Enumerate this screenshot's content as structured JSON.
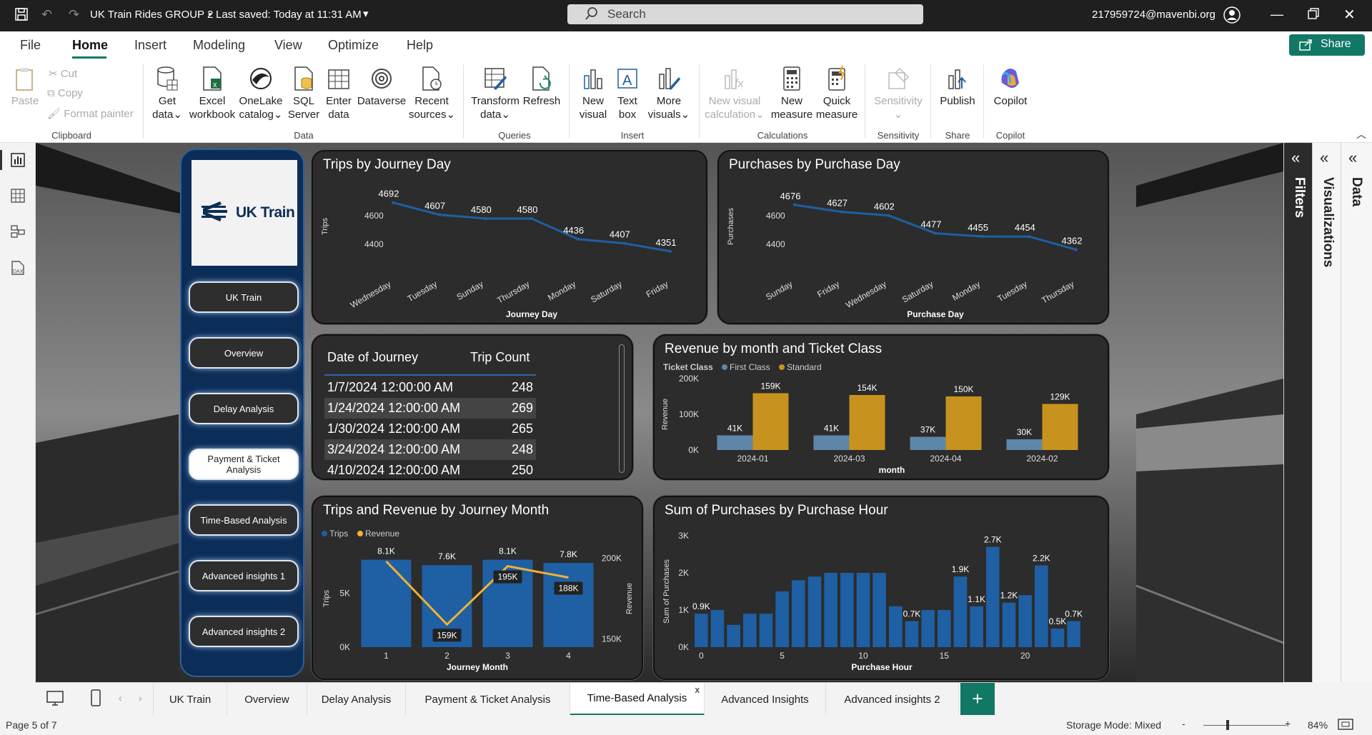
{
  "titlebar": {
    "file_title": "UK Train Rides GROUP 2",
    "saved": "Last saved: Today at 11:31 AM",
    "search_placeholder": "Search",
    "user": "217959724@mavenbi.org"
  },
  "menu": {
    "items": [
      "File",
      "Home",
      "Insert",
      "Modeling",
      "View",
      "Optimize",
      "Help"
    ],
    "share": "Share"
  },
  "ribbon": {
    "clipboard": {
      "paste": "Paste",
      "cut": "Cut",
      "copy": "Copy",
      "format_painter": "Format painter",
      "group": "Clipboard"
    },
    "data": {
      "get_data": "Get data",
      "excel": "Excel workbook",
      "onelake": "OneLake catalog",
      "sql": "SQL Server",
      "enter": "Enter data",
      "dataverse": "Dataverse",
      "recent": "Recent sources",
      "group": "Data"
    },
    "queries": {
      "transform": "Transform data",
      "refresh": "Refresh",
      "group": "Queries"
    },
    "insert": {
      "new_visual": "New visual",
      "text_box": "Text box",
      "more_visuals": "More visuals",
      "group": "Insert"
    },
    "calculations": {
      "new_visual_calc": "New visual calculation",
      "new_measure": "New measure",
      "quick_measure": "Quick measure",
      "group": "Calculations"
    },
    "sensitivity": {
      "label": "Sensitivity",
      "group": "Sensitivity"
    },
    "share": {
      "publish": "Publish",
      "group": "Share"
    },
    "copilot": {
      "label": "Copilot",
      "group": "Copilot"
    }
  },
  "nav": {
    "logo_text": "UK Train",
    "buttons": [
      "UK Train",
      "Overview",
      "Delay Analysis",
      "Payment & Ticket Analysis",
      "Time-Based Analysis",
      "Advanced insights 1",
      "Advanced insights 2"
    ]
  },
  "panes": {
    "filters": "Filters",
    "visualizations": "Visualizations",
    "data": "Data"
  },
  "tabs": [
    "UK Train",
    "Overview",
    "Delay Analysis",
    "Payment & Ticket Analysis",
    "Time-Based Analysis",
    "Advanced Insights",
    "Advanced insights 2"
  ],
  "status": {
    "page": "Page 5 of 7",
    "storage": "Storage Mode: Mixed",
    "zoom": "84%"
  },
  "colors": {
    "blue": "#1f5fa3",
    "gold": "#c8921e",
    "steel": "#5e86a8",
    "orange_line": "#f2b134"
  },
  "chart_data": [
    {
      "id": "trips_by_journey_day",
      "type": "line",
      "title": "Trips by Journey Day",
      "xlabel": "Journey Day",
      "ylabel": "Trips",
      "categories": [
        "Wednesday",
        "Tuesday",
        "Sunday",
        "Thursday",
        "Monday",
        "Saturday",
        "Friday"
      ],
      "values": [
        4692,
        4607,
        4580,
        4580,
        4436,
        4407,
        4351
      ],
      "labels": [
        "4692",
        "4607",
        "4580",
        "4580",
        "4436",
        "4407",
        "4351"
      ],
      "yticks": [
        "4600",
        "4400"
      ],
      "ylim": [
        4300,
        4750
      ]
    },
    {
      "id": "purchases_by_purchase_day",
      "type": "line",
      "title": "Purchases by Purchase Day",
      "xlabel": "Purchase Day",
      "ylabel": "Purchases",
      "categories": [
        "Sunday",
        "Friday",
        "Wednesday",
        "Saturday",
        "Monday",
        "Tuesday",
        "Thursday"
      ],
      "values": [
        4676,
        4627,
        4602,
        4477,
        4455,
        4454,
        4362
      ],
      "labels": [
        "4676",
        "4627",
        "4602",
        "4477",
        "4455",
        "4454",
        "4362"
      ],
      "yticks": [
        "4600",
        "4400"
      ],
      "ylim": [
        4300,
        4750
      ]
    },
    {
      "id": "date_table",
      "type": "table",
      "columns": [
        "Date of Journey",
        "Trip Count"
      ],
      "rows": [
        [
          "1/7/2024 12:00:00 AM",
          "248"
        ],
        [
          "1/24/2024 12:00:00 AM",
          "269"
        ],
        [
          "1/30/2024 12:00:00 AM",
          "265"
        ],
        [
          "3/24/2024 12:00:00 AM",
          "248"
        ],
        [
          "4/10/2024 12:00:00 AM",
          "250"
        ]
      ]
    },
    {
      "id": "revenue_by_month_class",
      "type": "bar",
      "title": "Revenue by month and Ticket Class",
      "legend_title": "Ticket Class",
      "xlabel": "month",
      "ylabel": "Revenue",
      "categories": [
        "2024-01",
        "2024-03",
        "2024-04",
        "2024-02"
      ],
      "series": [
        {
          "name": "First Class",
          "values": [
            41,
            41,
            37,
            30
          ],
          "labels": [
            "41K",
            "41K",
            "37K",
            "30K"
          ]
        },
        {
          "name": "Standard",
          "values": [
            159,
            154,
            150,
            129
          ],
          "labels": [
            "159K",
            "154K",
            "150K",
            "129K"
          ]
        }
      ],
      "yticks": [
        "200K",
        "100K",
        "0K"
      ],
      "ylim": [
        0,
        200
      ]
    },
    {
      "id": "trips_revenue_by_month",
      "type": "bar",
      "title": "Trips and Revenue by Journey Month",
      "xlabel": "Journey Month",
      "ylabel": "Trips",
      "y2label": "Revenue",
      "categories": [
        "1",
        "2",
        "3",
        "4"
      ],
      "series": [
        {
          "name": "Trips",
          "values": [
            8100,
            7600,
            8100,
            7800
          ],
          "labels": [
            "8.1K",
            "7.6K",
            "8.1K",
            "7.8K"
          ]
        },
        {
          "name": "Revenue",
          "values": [
            198,
            159,
            195,
            188
          ],
          "labels": [
            "",
            "159K",
            "195K",
            "188K"
          ]
        }
      ],
      "yticks": [
        "5K",
        "0K"
      ],
      "y2ticks": [
        "200K",
        "150K"
      ],
      "ylim": [
        0,
        9000
      ],
      "y2lim": [
        145,
        205
      ]
    },
    {
      "id": "purchases_by_hour",
      "type": "bar",
      "title": "Sum of Purchases by Purchase Hour",
      "xlabel": "Purchase Hour",
      "ylabel": "Sum of Purchases",
      "categories": [
        "0",
        "1",
        "2",
        "3",
        "4",
        "5",
        "6",
        "7",
        "8",
        "9",
        "10",
        "11",
        "12",
        "13",
        "14",
        "15",
        "16",
        "17",
        "18",
        "19",
        "20",
        "21",
        "22",
        "23"
      ],
      "values": [
        0.9,
        1.0,
        0.6,
        0.9,
        0.9,
        1.5,
        1.8,
        1.9,
        2.0,
        2.0,
        2.0,
        2.0,
        1.1,
        0.7,
        1.0,
        1.0,
        1.9,
        1.1,
        2.7,
        1.2,
        1.4,
        2.2,
        0.5,
        0.7
      ],
      "labels": {
        "0": "0.9K",
        "13": "0.7K",
        "16": "1.9K",
        "17": "1.1K",
        "18": "2.7K",
        "19": "1.2K",
        "21": "2.2K",
        "22": "0.5K",
        "23": "0.7K"
      },
      "xticks": [
        "0",
        "5",
        "10",
        "15",
        "20"
      ],
      "yticks": [
        "3K",
        "2K",
        "1K",
        "0K"
      ],
      "ylim": [
        0,
        3
      ]
    }
  ]
}
